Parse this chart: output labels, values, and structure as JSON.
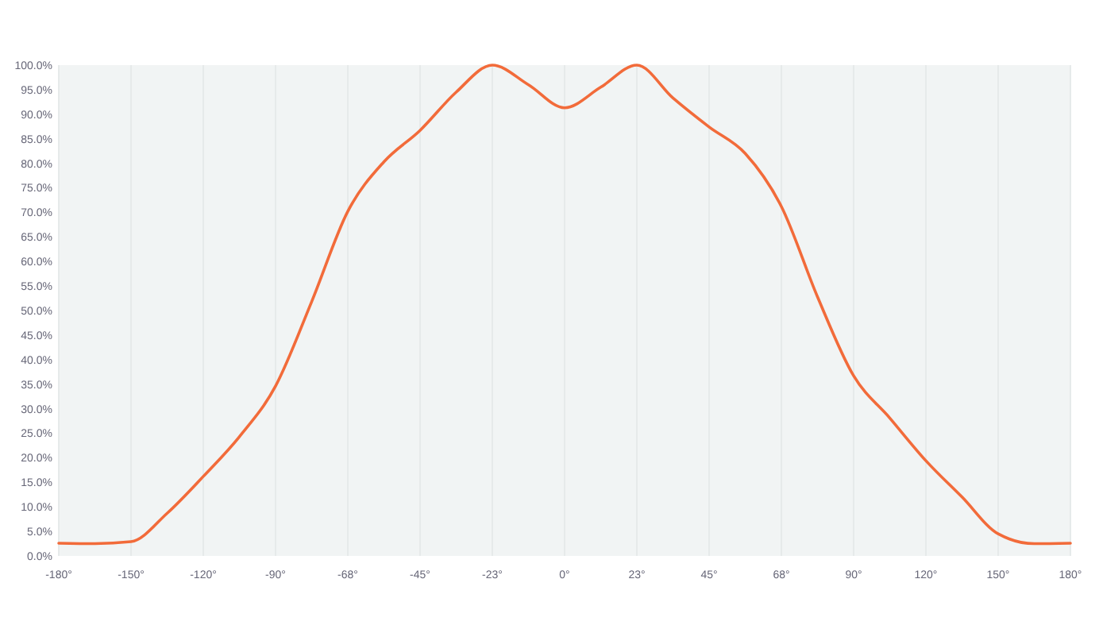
{
  "chart_data": {
    "type": "line",
    "categories": [
      "-180°",
      null,
      "-150°",
      null,
      "-120°",
      null,
      "-90°",
      null,
      "-68°",
      null,
      "-45°",
      null,
      "-23°",
      null,
      "0°",
      null,
      "23°",
      null,
      "45°",
      null,
      "68°",
      null,
      "90°",
      null,
      "120°",
      null,
      "150°",
      null,
      "180°"
    ],
    "series": [
      {
        "color": "#f26b3a",
        "values": [
          2.6,
          2.5,
          2.9,
          8.7,
          16.2,
          24.3,
          34.6,
          51.8,
          70.2,
          80.3,
          86.7,
          94.5,
          100,
          96,
          91.3,
          95.5,
          100,
          93.3,
          87.4,
          82,
          71.2,
          52.8,
          36.7,
          28.1,
          19.4,
          12,
          4.5,
          2.5,
          2.6
        ]
      }
    ],
    "ylim": [
      0,
      100
    ],
    "yticks": [
      {
        "value": 0,
        "label": "0.0%"
      },
      {
        "value": 5,
        "label": "5.0%"
      },
      {
        "value": 10,
        "label": "10.0%"
      },
      {
        "value": 15,
        "label": "15.0%"
      },
      {
        "value": 20,
        "label": "20.0%"
      },
      {
        "value": 25,
        "label": "25.0%"
      },
      {
        "value": 30,
        "label": "30.0%"
      },
      {
        "value": 35,
        "label": "35.0%"
      },
      {
        "value": 40,
        "label": "40.0%"
      },
      {
        "value": 45,
        "label": "45.0%"
      },
      {
        "value": 50,
        "label": "50.0%"
      },
      {
        "value": 55,
        "label": "55.0%"
      },
      {
        "value": 60,
        "label": "60.0%"
      },
      {
        "value": 65,
        "label": "65.0%"
      },
      {
        "value": 70,
        "label": "70.0%"
      },
      {
        "value": 75,
        "label": "75.0%"
      },
      {
        "value": 80,
        "label": "80.0%"
      },
      {
        "value": 85,
        "label": "85.0%"
      },
      {
        "value": 90,
        "label": "90.0%"
      },
      {
        "value": 95,
        "label": "95.0%"
      },
      {
        "value": 100,
        "label": "100.0%"
      }
    ],
    "grid": "x",
    "marker": "none",
    "line_style": "solid"
  }
}
